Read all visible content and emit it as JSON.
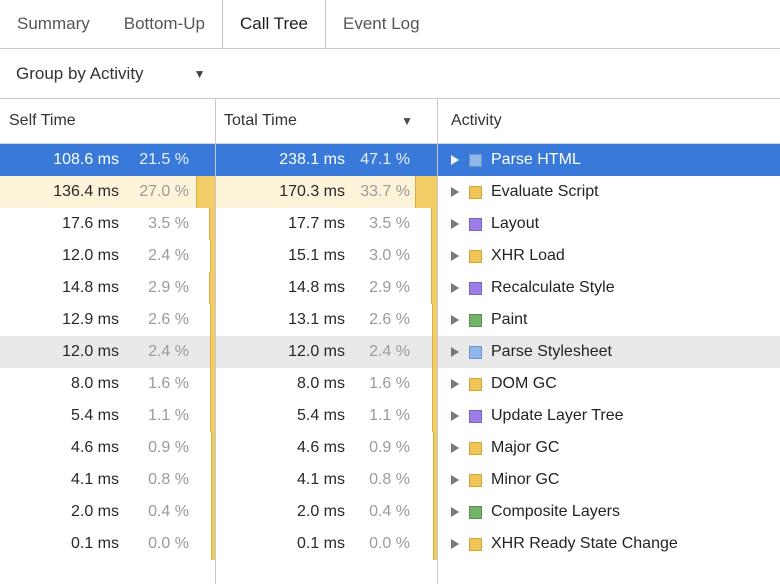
{
  "tabs": [
    {
      "label": "Summary",
      "active": false
    },
    {
      "label": "Bottom-Up",
      "active": false
    },
    {
      "label": "Call Tree",
      "active": true
    },
    {
      "label": "Event Log",
      "active": false
    }
  ],
  "toolbar": {
    "group_by": "Group by Activity"
  },
  "table": {
    "headers": {
      "self": "Self Time",
      "total": "Total Time",
      "activity": "Activity"
    },
    "sort": {
      "column": "total",
      "direction": "desc"
    },
    "rows": [
      {
        "self_time": "108.6 ms",
        "self_pct": "21.5 %",
        "self_pct_value": 21.5,
        "total_time": "238.1 ms",
        "total_pct": "47.1 %",
        "total_pct_value": 47.1,
        "activity": "Parse HTML",
        "category": "loading",
        "state": "selected"
      },
      {
        "self_time": "136.4 ms",
        "self_pct": "27.0 %",
        "self_pct_value": 27.0,
        "total_time": "170.3 ms",
        "total_pct": "33.7 %",
        "total_pct_value": 33.7,
        "activity": "Evaluate Script",
        "category": "scripting",
        "state": "warm"
      },
      {
        "self_time": "17.6 ms",
        "self_pct": "3.5 %",
        "self_pct_value": 3.5,
        "total_time": "17.7 ms",
        "total_pct": "3.5 %",
        "total_pct_value": 3.5,
        "activity": "Layout",
        "category": "rendering",
        "state": "normal"
      },
      {
        "self_time": "12.0 ms",
        "self_pct": "2.4 %",
        "self_pct_value": 2.4,
        "total_time": "15.1 ms",
        "total_pct": "3.0 %",
        "total_pct_value": 3.0,
        "activity": "XHR Load",
        "category": "scripting",
        "state": "normal"
      },
      {
        "self_time": "14.8 ms",
        "self_pct": "2.9 %",
        "self_pct_value": 2.9,
        "total_time": "14.8 ms",
        "total_pct": "2.9 %",
        "total_pct_value": 2.9,
        "activity": "Recalculate Style",
        "category": "rendering",
        "state": "normal"
      },
      {
        "self_time": "12.9 ms",
        "self_pct": "2.6 %",
        "self_pct_value": 2.6,
        "total_time": "13.1 ms",
        "total_pct": "2.6 %",
        "total_pct_value": 2.6,
        "activity": "Paint",
        "category": "painting",
        "state": "normal"
      },
      {
        "self_time": "12.0 ms",
        "self_pct": "2.4 %",
        "self_pct_value": 2.4,
        "total_time": "12.0 ms",
        "total_pct": "2.4 %",
        "total_pct_value": 2.4,
        "activity": "Parse Stylesheet",
        "category": "loading",
        "state": "hover"
      },
      {
        "self_time": "8.0 ms",
        "self_pct": "1.6 %",
        "self_pct_value": 1.6,
        "total_time": "8.0 ms",
        "total_pct": "1.6 %",
        "total_pct_value": 1.6,
        "activity": "DOM GC",
        "category": "scripting",
        "state": "normal"
      },
      {
        "self_time": "5.4 ms",
        "self_pct": "1.1 %",
        "self_pct_value": 1.1,
        "total_time": "5.4 ms",
        "total_pct": "1.1 %",
        "total_pct_value": 1.1,
        "activity": "Update Layer Tree",
        "category": "rendering",
        "state": "normal"
      },
      {
        "self_time": "4.6 ms",
        "self_pct": "0.9 %",
        "self_pct_value": 0.9,
        "total_time": "4.6 ms",
        "total_pct": "0.9 %",
        "total_pct_value": 0.9,
        "activity": "Major GC",
        "category": "scripting",
        "state": "normal"
      },
      {
        "self_time": "4.1 ms",
        "self_pct": "0.8 %",
        "self_pct_value": 0.8,
        "total_time": "4.1 ms",
        "total_pct": "0.8 %",
        "total_pct_value": 0.8,
        "activity": "Minor GC",
        "category": "scripting",
        "state": "normal"
      },
      {
        "self_time": "2.0 ms",
        "self_pct": "0.4 %",
        "self_pct_value": 0.4,
        "total_time": "2.0 ms",
        "total_pct": "0.4 %",
        "total_pct_value": 0.4,
        "activity": "Composite Layers",
        "category": "painting",
        "state": "normal"
      },
      {
        "self_time": "0.1 ms",
        "self_pct": "0.0 %",
        "self_pct_value": 0.0,
        "total_time": "0.1 ms",
        "total_pct": "0.0 %",
        "total_pct_value": 0.0,
        "activity": "XHR Ready State Change",
        "category": "scripting",
        "state": "normal"
      }
    ]
  },
  "icons": {
    "sort_desc": "▼",
    "dropdown": "▼"
  },
  "colors": {
    "selection": "#3879d9",
    "hover_row": "#e9e9e9",
    "warm_row": "#fcf3d9",
    "percent_bar_fill": "#f2cd66",
    "percent_bar_edge": "#d9ae45",
    "categories": {
      "loading": {
        "fill": "#90b7e9",
        "border": "#6e95c8"
      },
      "scripting": {
        "fill": "#f0c457",
        "border": "#cfa43e"
      },
      "rendering": {
        "fill": "#9b7fe6",
        "border": "#7e62c6"
      },
      "painting": {
        "fill": "#74b266",
        "border": "#5a9150"
      }
    }
  }
}
